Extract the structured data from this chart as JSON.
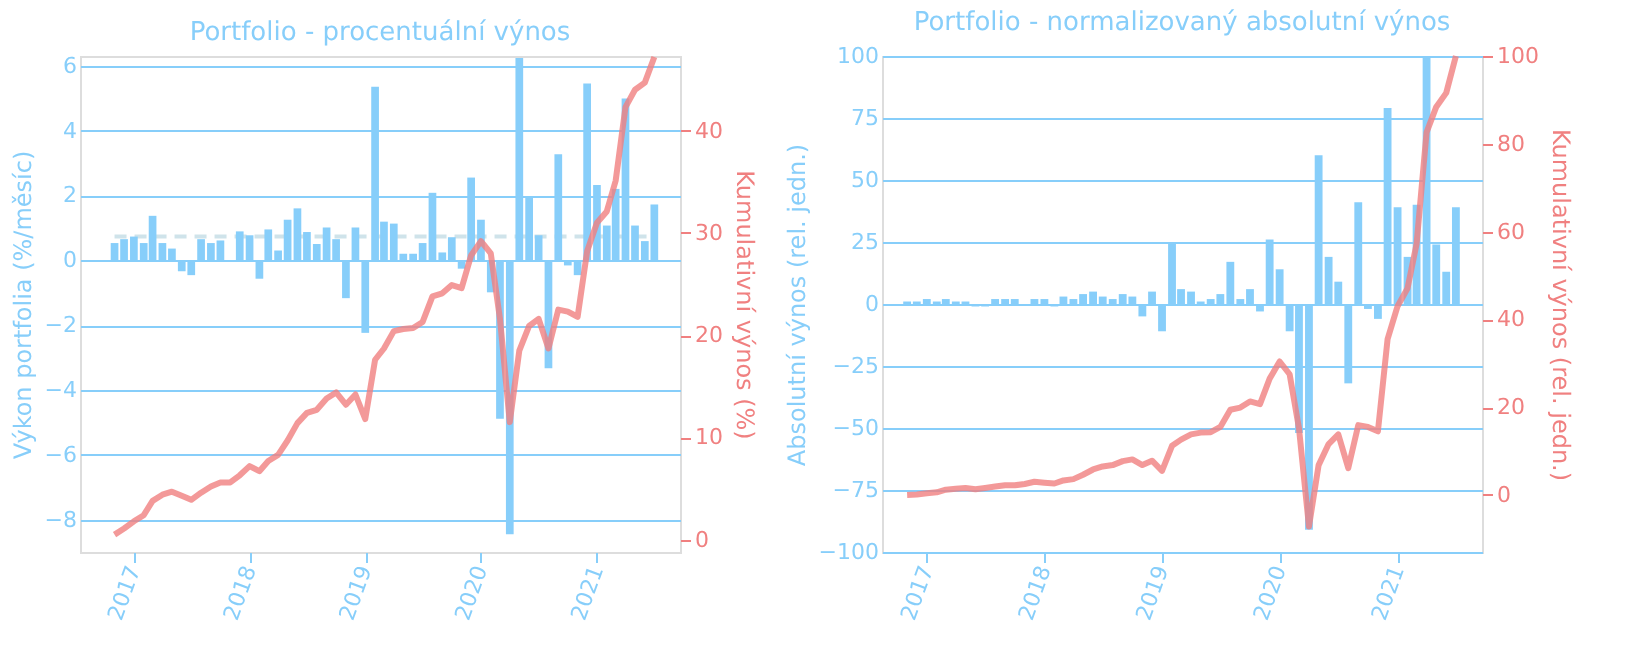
{
  "chart_data": [
    {
      "type": "bar",
      "title": "Portfolio - procentuální výnos",
      "ylabel": "Výkon portfolia (%/měsíc)",
      "y2label": "Kumulativní výnos (%)",
      "x": [
        "2016-11",
        "2016-12",
        "2017-01",
        "2017-02",
        "2017-03",
        "2017-04",
        "2017-05",
        "2017-06",
        "2017-07",
        "2017-08",
        "2017-09",
        "2017-10",
        "2017-11",
        "2017-12",
        "2018-01",
        "2018-02",
        "2018-03",
        "2018-04",
        "2018-05",
        "2018-06",
        "2018-07",
        "2018-08",
        "2018-09",
        "2018-10",
        "2018-11",
        "2018-12",
        "2019-01",
        "2019-02",
        "2019-03",
        "2019-04",
        "2019-05",
        "2019-06",
        "2019-07",
        "2019-08",
        "2019-09",
        "2019-10",
        "2019-11",
        "2019-12",
        "2020-01",
        "2020-02",
        "2020-03",
        "2020-04",
        "2020-05",
        "2020-06",
        "2020-07",
        "2020-08",
        "2020-09",
        "2020-10",
        "2020-11",
        "2020-12",
        "2021-01",
        "2021-02",
        "2021-03",
        "2021-04",
        "2021-05",
        "2021-06",
        "2021-07"
      ],
      "series": [
        {
          "type": "bar",
          "color": "#87cefa",
          "values": [
            0.53,
            0.65,
            0.73,
            0.53,
            1.37,
            0.53,
            0.36,
            -0.34,
            -0.46,
            0.65,
            0.53,
            0.61,
            0.0,
            0.89,
            0.77,
            -0.57,
            0.95,
            0.3,
            1.25,
            1.6,
            0.87,
            0.5,
            1.01,
            0.65,
            -1.17,
            1.01,
            -2.24,
            5.35,
            1.19,
            1.13,
            0.2,
            0.2,
            0.53,
            2.08,
            0.24,
            0.71,
            -0.26,
            2.55,
            1.25,
            -0.99,
            -4.89,
            -8.45,
            6.24,
            1.98,
            0.77,
            -3.33,
            3.27,
            -0.16,
            -0.46,
            5.45,
            2.32,
            1.07,
            2.2,
            4.99,
            1.07,
            0.59,
            1.72
          ]
        },
        {
          "type": "line",
          "axis": "y2",
          "color": "#f08080",
          "values": [
            0.5,
            1.1,
            1.8,
            2.4,
            3.8,
            4.4,
            4.7,
            4.3,
            3.9,
            4.6,
            5.2,
            5.6,
            5.6,
            6.3,
            7.2,
            6.7,
            7.7,
            8.3,
            9.7,
            11.4,
            12.4,
            12.7,
            13.8,
            14.4,
            13.2,
            14.2,
            11.8,
            17.6,
            18.7,
            20.4,
            20.6,
            20.7,
            21.3,
            23.8,
            24.1,
            24.9,
            24.6,
            27.8,
            29.2,
            28.0,
            21.6,
            11.5,
            18.5,
            20.9,
            21.6,
            18.7,
            22.5,
            22.3,
            21.8,
            28.2,
            31.0,
            32.1,
            35.1,
            42.3,
            44.0,
            44.7,
            47.2
          ]
        }
      ],
      "xlim": [
        "2016-07-15",
        "2021-09-20"
      ],
      "xticks": [
        "2017",
        "2018",
        "2019",
        "2020",
        "2021"
      ],
      "ylim": [
        -9.0,
        6.3
      ],
      "yticks": [
        -8,
        -6,
        -4,
        -2,
        0,
        2,
        4,
        6
      ],
      "y2lim": [
        -1.2,
        47.3
      ],
      "y2ticks": [
        0,
        10,
        20,
        30,
        40
      ],
      "grid": "y",
      "ref_lines": [
        {
          "axis": "y",
          "value": 0.73,
          "color": "#cfe3ea",
          "line_style": "dashed"
        }
      ]
    },
    {
      "type": "bar",
      "title": "Portfolio - normalizovaný absolutní výnos",
      "ylabel": "Absolutní výnos (rel. jedn.)",
      "y2label": "Kumulativní výnos (rel. jedn.)",
      "x": [
        "2016-11",
        "2016-12",
        "2017-01",
        "2017-02",
        "2017-03",
        "2017-04",
        "2017-05",
        "2017-06",
        "2017-07",
        "2017-08",
        "2017-09",
        "2017-10",
        "2017-11",
        "2017-12",
        "2018-01",
        "2018-02",
        "2018-03",
        "2018-04",
        "2018-05",
        "2018-06",
        "2018-07",
        "2018-08",
        "2018-09",
        "2018-10",
        "2018-11",
        "2018-12",
        "2019-01",
        "2019-02",
        "2019-03",
        "2019-04",
        "2019-05",
        "2019-06",
        "2019-07",
        "2019-08",
        "2019-09",
        "2019-10",
        "2019-11",
        "2019-12",
        "2020-01",
        "2020-02",
        "2020-03",
        "2020-04",
        "2020-05",
        "2020-06",
        "2020-07",
        "2020-08",
        "2020-09",
        "2020-10",
        "2020-11",
        "2020-12",
        "2021-01",
        "2021-02",
        "2021-03",
        "2021-04",
        "2021-05",
        "2021-06",
        "2021-07"
      ],
      "series": [
        {
          "type": "bar",
          "color": "#87cefa",
          "values": [
            1,
            1,
            2,
            1,
            2,
            1,
            1,
            -1,
            -1,
            2,
            2,
            2,
            0,
            2,
            2,
            -1,
            3,
            2,
            4,
            5,
            3,
            2,
            4,
            3,
            -5,
            5,
            -11,
            25,
            6,
            5,
            1,
            2,
            4,
            17,
            2,
            6,
            -3,
            26,
            14,
            -11,
            -52,
            -91,
            60,
            19,
            9,
            -32,
            41,
            -2,
            -6,
            79,
            39,
            19,
            40,
            100,
            24,
            13,
            39
          ]
        },
        {
          "type": "line",
          "axis": "y2",
          "color": "#f08080",
          "values": [
            0,
            0.1,
            0.4,
            0.6,
            1.2,
            1.4,
            1.6,
            1.3,
            1.6,
            1.9,
            2.2,
            2.2,
            2.5,
            3.0,
            2.8,
            2.6,
            3.3,
            3.6,
            4.6,
            5.8,
            6.5,
            6.8,
            7.7,
            8.1,
            6.8,
            7.8,
            5.5,
            11.2,
            12.6,
            13.8,
            14.2,
            14.3,
            15.5,
            19.4,
            19.9,
            21.3,
            20.7,
            26.5,
            30.4,
            27.5,
            15.2,
            -7.2,
            6.8,
            11.6,
            13.8,
            6.1,
            15.9,
            15.5,
            14.5,
            35.5,
            43.0,
            47.1,
            57.2,
            82.6,
            88.4,
            91.6,
            100
          ]
        }
      ],
      "xlim": [
        "2016-08-15",
        "2021-09-20"
      ],
      "xticks": [
        "2017",
        "2018",
        "2019",
        "2020",
        "2021"
      ],
      "ylim": [
        -100,
        100
      ],
      "yticks": [
        -100,
        -75,
        -50,
        -25,
        0,
        25,
        50,
        75,
        100
      ],
      "y2lim": [
        -13,
        100
      ],
      "y2ticks": [
        0,
        20,
        40,
        60,
        80,
        100
      ],
      "grid": "y"
    }
  ]
}
